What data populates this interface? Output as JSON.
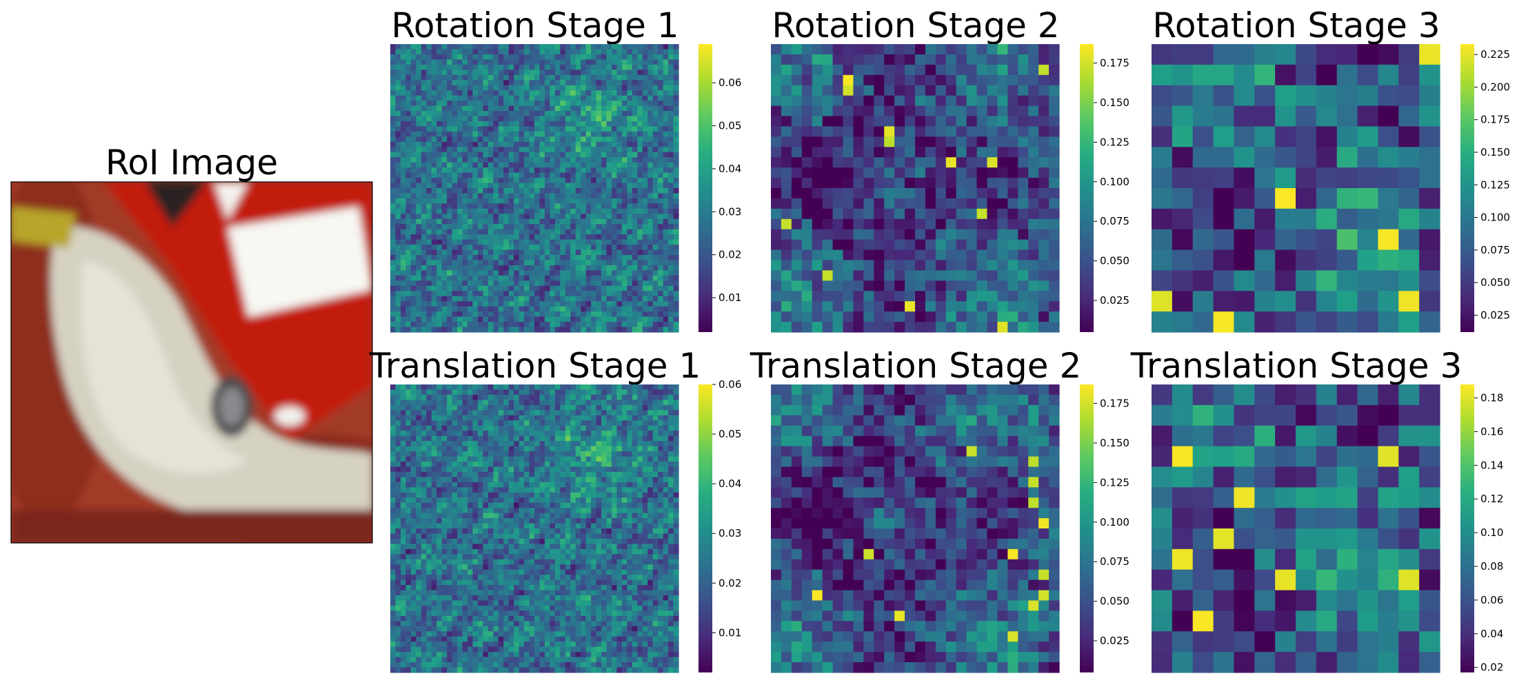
{
  "chart_data": [
    {
      "type": "image",
      "title": "RoI Image",
      "description_colors": {
        "red": "#c41c12",
        "cream": "#d8d4c4",
        "maroon": "#8a2a1c",
        "white": "#f6f6f2"
      }
    },
    {
      "type": "heatmap",
      "title": "Rotation Stage 1",
      "grid": 56,
      "colormap": "viridis",
      "vmin": 0.002,
      "vmax": 0.069,
      "ticks": [
        0.01,
        0.02,
        0.03,
        0.04,
        0.05,
        0.06
      ],
      "tick_labels": [
        "0.01",
        "0.02",
        "0.03",
        "0.04",
        "0.05",
        "0.06"
      ],
      "seed": 11,
      "style": "fine"
    },
    {
      "type": "heatmap",
      "title": "Rotation Stage 2",
      "grid": 28,
      "colormap": "viridis",
      "vmin": 0.005,
      "vmax": 0.187,
      "ticks": [
        0.025,
        0.05,
        0.075,
        0.1,
        0.125,
        0.15,
        0.175
      ],
      "tick_labels": [
        "0.025",
        "0.050",
        "0.075",
        "0.100",
        "0.125",
        "0.150",
        "0.175"
      ],
      "seed": 23,
      "style": "mid"
    },
    {
      "type": "heatmap",
      "title": "Rotation Stage 3",
      "grid": 14,
      "colormap": "viridis",
      "vmin": 0.012,
      "vmax": 0.233,
      "ticks": [
        0.025,
        0.05,
        0.075,
        0.1,
        0.125,
        0.15,
        0.175,
        0.2,
        0.225
      ],
      "tick_labels": [
        "0.025",
        "0.050",
        "0.075",
        "0.100",
        "0.125",
        "0.150",
        "0.175",
        "0.200",
        "0.225"
      ],
      "seed": 37,
      "style": "coarse"
    },
    {
      "type": "heatmap",
      "title": "Translation Stage 1",
      "grid": 56,
      "colormap": "viridis",
      "vmin": 0.002,
      "vmax": 0.06,
      "ticks": [
        0.01,
        0.02,
        0.03,
        0.04,
        0.05,
        0.06
      ],
      "tick_labels": [
        "0.01",
        "0.02",
        "0.03",
        "0.04",
        "0.05",
        "0.06"
      ],
      "seed": 41,
      "style": "fine"
    },
    {
      "type": "heatmap",
      "title": "Translation Stage 2",
      "grid": 28,
      "colormap": "viridis",
      "vmin": 0.005,
      "vmax": 0.187,
      "ticks": [
        0.025,
        0.05,
        0.075,
        0.1,
        0.125,
        0.15,
        0.175
      ],
      "tick_labels": [
        "0.025",
        "0.050",
        "0.075",
        "0.100",
        "0.125",
        "0.150",
        "0.175"
      ],
      "seed": 53,
      "style": "mid"
    },
    {
      "type": "heatmap",
      "title": "Translation Stage 3",
      "grid": 14,
      "colormap": "viridis",
      "vmin": 0.017,
      "vmax": 0.188,
      "ticks": [
        0.02,
        0.04,
        0.06,
        0.08,
        0.1,
        0.12,
        0.14,
        0.16,
        0.18
      ],
      "tick_labels": [
        "0.02",
        "0.04",
        "0.06",
        "0.08",
        "0.10",
        "0.12",
        "0.14",
        "0.16",
        "0.18"
      ],
      "seed": 67,
      "style": "coarse"
    }
  ]
}
